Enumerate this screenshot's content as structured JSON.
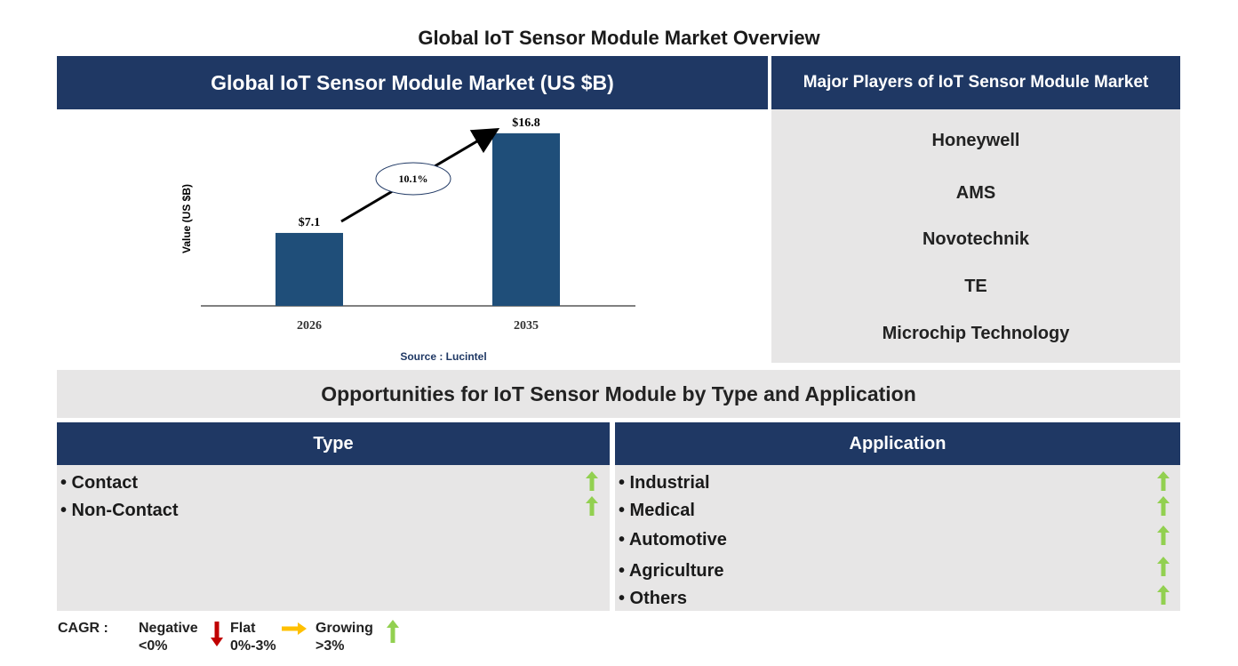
{
  "title": "Global IoT Sensor Module Market Overview",
  "market_panel": {
    "header": "Global IoT Sensor Module Market (US $B)",
    "source": "Source : Lucintel"
  },
  "chart_data": {
    "type": "bar",
    "categories": [
      "2026",
      "2035"
    ],
    "values": [
      7.1,
      16.8
    ],
    "value_labels": [
      "$7.1",
      "$16.8"
    ],
    "ylabel": "Value (US $B)",
    "cagr_label": "10.1%",
    "ylim": [
      0,
      18
    ],
    "bar_color": "#1f4e79"
  },
  "players_panel": {
    "header": "Major Players of IoT Sensor Module Market",
    "players": [
      "Honeywell",
      "AMS",
      "Novotechnik",
      "TE",
      "Microchip Technology"
    ]
  },
  "opportunities": {
    "header": "Opportunities for IoT Sensor Module by Type and Application",
    "type": {
      "header": "Type",
      "items": [
        "• Contact",
        "• Non-Contact"
      ],
      "trend": "growing"
    },
    "application": {
      "header": "Application",
      "items": [
        "• Industrial",
        "• Medical",
        "• Automotive",
        "• Agriculture",
        "• Others"
      ],
      "trend": "growing"
    }
  },
  "legend": {
    "cagr_label": "CAGR :",
    "negative": {
      "label": "Negative",
      "range": "<0%",
      "color": "#c00000"
    },
    "flat": {
      "label": "Flat",
      "range": "0%-3%",
      "color": "#ffc000"
    },
    "growing": {
      "label": "Growing",
      "range": ">3%",
      "color": "#92d050"
    }
  },
  "colors": {
    "navy": "#1f3864",
    "panel_gray": "#e7e6e6",
    "source_blue": "#1f3864"
  }
}
